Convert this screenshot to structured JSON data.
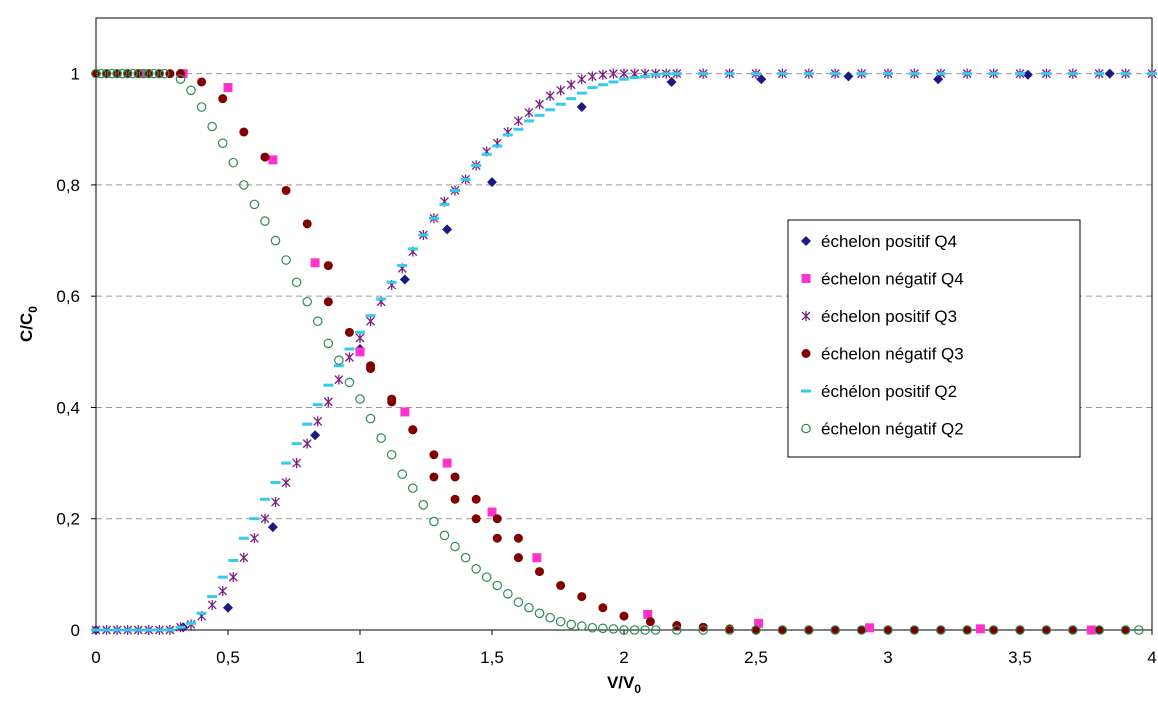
{
  "chart_data": {
    "type": "scatter",
    "title": "",
    "xlabel": {
      "main": "V/V",
      "sub": "0"
    },
    "ylabel": {
      "main": "C/C",
      "sub": "0"
    },
    "xlim": [
      0,
      4
    ],
    "ylim": [
      0,
      1.1
    ],
    "x_ticks": [
      0,
      0.5,
      1,
      1.5,
      2,
      2.5,
      3,
      3.5,
      4
    ],
    "x_tick_labels": [
      "0",
      "0,5",
      "1",
      "1,5",
      "2",
      "2,5",
      "3",
      "3,5",
      "4"
    ],
    "y_ticks": [
      0,
      0.2,
      0.4,
      0.6,
      0.8,
      1
    ],
    "y_tick_labels": [
      "0",
      "0,2",
      "0,4",
      "0,6",
      "0,8",
      "1"
    ],
    "grid": "horizontal dashed",
    "legend_position": "right",
    "series": [
      {
        "name": "échelon positif Q4",
        "marker": "diamond",
        "color": "#1a1a80",
        "x": [
          0.0,
          0.33,
          0.5,
          0.67,
          0.83,
          1.0,
          1.17,
          1.33,
          1.5,
          1.84,
          2.18,
          2.52,
          2.85,
          3.19,
          3.53,
          3.84
        ],
        "y": [
          0.0,
          0.005,
          0.04,
          0.185,
          0.35,
          0.505,
          0.63,
          0.72,
          0.805,
          0.94,
          0.985,
          0.99,
          0.995,
          0.99,
          0.998,
          1.0
        ]
      },
      {
        "name": "échelon négatif Q4",
        "marker": "square",
        "color": "#ff33cc",
        "x": [
          0.17,
          0.33,
          0.5,
          0.67,
          0.83,
          1.0,
          1.17,
          1.33,
          1.5,
          1.67,
          2.09,
          2.51,
          2.93,
          3.35,
          3.77
        ],
        "y": [
          1.0,
          1.0,
          0.975,
          0.845,
          0.66,
          0.5,
          0.392,
          0.3,
          0.212,
          0.13,
          0.028,
          0.012,
          0.004,
          0.002,
          0.0
        ]
      },
      {
        "name": "échelon positif Q3",
        "marker": "star",
        "color": "#7a2080",
        "x": [
          0.0,
          0.04,
          0.08,
          0.12,
          0.16,
          0.2,
          0.24,
          0.28,
          0.32,
          0.36,
          0.4,
          0.44,
          0.48,
          0.52,
          0.56,
          0.6,
          0.64,
          0.68,
          0.72,
          0.76,
          0.8,
          0.84,
          0.88,
          0.92,
          0.96,
          1.0,
          1.04,
          1.08,
          1.12,
          1.16,
          1.2,
          1.24,
          1.28,
          1.32,
          1.36,
          1.4,
          1.44,
          1.48,
          1.52,
          1.56,
          1.6,
          1.64,
          1.68,
          1.72,
          1.76,
          1.8,
          1.84,
          1.88,
          1.92,
          1.96,
          2.0,
          2.04,
          2.08,
          2.12,
          2.16,
          2.2,
          2.3,
          2.4,
          2.5,
          2.6,
          2.7,
          2.8,
          2.9,
          3.0,
          3.1,
          3.2,
          3.3,
          3.4,
          3.5,
          3.6,
          3.7,
          3.8,
          3.9,
          4.0
        ],
        "y": [
          0.0,
          0.0,
          0.0,
          0.0,
          0.0,
          0.0,
          0.0,
          0.0,
          0.005,
          0.01,
          0.025,
          0.045,
          0.07,
          0.095,
          0.13,
          0.165,
          0.2,
          0.23,
          0.265,
          0.3,
          0.335,
          0.375,
          0.41,
          0.45,
          0.49,
          0.525,
          0.555,
          0.59,
          0.62,
          0.65,
          0.68,
          0.71,
          0.74,
          0.77,
          0.79,
          0.81,
          0.835,
          0.86,
          0.875,
          0.895,
          0.915,
          0.93,
          0.945,
          0.96,
          0.97,
          0.98,
          0.99,
          0.995,
          0.998,
          1.0,
          1.0,
          1.0,
          1.0,
          1.0,
          1.0,
          1.0,
          1.0,
          1.0,
          1.0,
          1.0,
          1.0,
          1.0,
          1.0,
          1.0,
          1.0,
          1.0,
          1.0,
          1.0,
          1.0,
          1.0,
          1.0,
          1.0,
          1.0,
          1.0
        ]
      },
      {
        "name": "échelon négatif Q3",
        "marker": "circle",
        "color": "#800000",
        "x": [
          0.0,
          0.04,
          0.08,
          0.12,
          0.16,
          0.2,
          0.24,
          0.28,
          0.32,
          0.4,
          0.48,
          0.56,
          0.64,
          0.72,
          0.8,
          0.88,
          0.96,
          1.04,
          1.12,
          1.2,
          1.28,
          1.36,
          1.44,
          1.52,
          1.6,
          1.68,
          1.76,
          1.84,
          1.92,
          2.0,
          2.1,
          2.2,
          2.3,
          2.4,
          2.5,
          2.6,
          2.7,
          2.8,
          2.9,
          3.0,
          3.1,
          3.2,
          3.3,
          3.4,
          3.5,
          3.6,
          3.7,
          3.8,
          3.9
        ],
        "y": [
          1.0,
          1.0,
          1.0,
          1.0,
          1.0,
          1.0,
          1.0,
          1.0,
          1.0,
          0.985,
          0.955,
          0.895,
          0.85,
          0.79,
          0.73,
          0.655,
          0.535,
          0.475,
          0.41,
          0.36,
          0.275,
          0.235,
          0.2,
          0.165,
          0.13,
          0.105,
          0.08,
          0.06,
          0.04,
          0.025,
          0.015,
          0.008,
          0.005,
          0.002,
          0.0,
          0.0,
          0.0,
          0.0,
          0.0,
          0.0,
          0.0,
          0.0,
          0.0,
          0.0,
          0.0,
          0.0,
          0.0,
          0.0,
          0.0
        ],
        "x_extra": [
          0.88,
          1.04,
          1.12,
          1.2,
          1.28,
          1.36,
          1.44,
          1.52,
          1.6
        ],
        "y_extra": [
          0.59,
          0.47,
          0.415,
          0.36,
          0.315,
          0.275,
          0.235,
          0.2,
          0.165
        ]
      },
      {
        "name": "échélon positif Q2",
        "marker": "dash",
        "color": "#33ccee",
        "x": [
          0.0,
          0.04,
          0.08,
          0.12,
          0.16,
          0.2,
          0.24,
          0.28,
          0.32,
          0.36,
          0.4,
          0.44,
          0.48,
          0.52,
          0.56,
          0.6,
          0.64,
          0.68,
          0.72,
          0.76,
          0.8,
          0.84,
          0.88,
          0.92,
          0.96,
          1.0,
          1.04,
          1.08,
          1.12,
          1.16,
          1.2,
          1.24,
          1.28,
          1.32,
          1.36,
          1.4,
          1.44,
          1.48,
          1.52,
          1.56,
          1.6,
          1.64,
          1.68,
          1.72,
          1.76,
          1.8,
          1.84,
          1.88,
          1.92,
          1.96,
          2.0,
          2.04,
          2.08,
          2.12,
          2.16,
          2.2,
          2.3,
          2.4,
          2.5,
          2.6,
          2.7,
          2.8,
          2.9,
          3.0,
          3.1,
          3.2,
          3.3,
          3.4,
          3.5,
          3.6,
          3.7,
          3.8,
          3.9,
          4.0
        ],
        "y": [
          0.0,
          0.0,
          0.0,
          0.0,
          0.0,
          0.0,
          0.0,
          0.0,
          0.005,
          0.012,
          0.03,
          0.06,
          0.095,
          0.125,
          0.165,
          0.2,
          0.235,
          0.265,
          0.3,
          0.335,
          0.37,
          0.405,
          0.44,
          0.475,
          0.505,
          0.535,
          0.565,
          0.595,
          0.625,
          0.655,
          0.685,
          0.71,
          0.74,
          0.765,
          0.79,
          0.81,
          0.835,
          0.855,
          0.87,
          0.89,
          0.9,
          0.915,
          0.925,
          0.935,
          0.945,
          0.955,
          0.965,
          0.975,
          0.98,
          0.985,
          0.99,
          0.993,
          0.995,
          0.998,
          1.0,
          1.0,
          1.0,
          1.0,
          1.0,
          1.0,
          1.0,
          1.0,
          1.0,
          1.0,
          1.0,
          1.0,
          1.0,
          1.0,
          1.0,
          1.0,
          1.0,
          1.0,
          1.0,
          1.0
        ]
      },
      {
        "name": "échelon négatif Q2",
        "marker": "open-circle",
        "color": "#2e8b57",
        "x": [
          0.0,
          0.02,
          0.04,
          0.06,
          0.08,
          0.1,
          0.12,
          0.14,
          0.16,
          0.18,
          0.2,
          0.22,
          0.24,
          0.26,
          0.32,
          0.36,
          0.4,
          0.44,
          0.48,
          0.52,
          0.56,
          0.6,
          0.64,
          0.68,
          0.72,
          0.76,
          0.8,
          0.84,
          0.88,
          0.92,
          0.96,
          1.0,
          1.04,
          1.08,
          1.12,
          1.16,
          1.2,
          1.24,
          1.28,
          1.32,
          1.36,
          1.4,
          1.44,
          1.48,
          1.52,
          1.56,
          1.6,
          1.64,
          1.68,
          1.72,
          1.76,
          1.8,
          1.84,
          1.88,
          1.92,
          1.96,
          2.0,
          2.04,
          2.08,
          2.12,
          2.2,
          2.3,
          2.4,
          2.5,
          2.6,
          2.7,
          2.8,
          2.9,
          3.0,
          3.1,
          3.2,
          3.3,
          3.4,
          3.5,
          3.6,
          3.7,
          3.8,
          3.9,
          3.95
        ],
        "y": [
          1.0,
          1.0,
          1.0,
          1.0,
          1.0,
          1.0,
          1.0,
          1.0,
          1.0,
          1.0,
          1.0,
          1.0,
          1.0,
          1.0,
          0.99,
          0.97,
          0.94,
          0.905,
          0.875,
          0.84,
          0.8,
          0.765,
          0.735,
          0.7,
          0.665,
          0.625,
          0.59,
          0.555,
          0.515,
          0.485,
          0.445,
          0.415,
          0.38,
          0.345,
          0.315,
          0.28,
          0.255,
          0.225,
          0.195,
          0.17,
          0.15,
          0.13,
          0.11,
          0.095,
          0.08,
          0.065,
          0.05,
          0.04,
          0.03,
          0.022,
          0.015,
          0.01,
          0.007,
          0.004,
          0.003,
          0.002,
          0.0,
          0.0,
          0.0,
          0.0,
          0.0,
          0.0,
          0.0,
          0.0,
          0.0,
          0.0,
          0.0,
          0.0,
          0.0,
          0.0,
          0.0,
          0.0,
          0.0,
          0.0,
          0.0,
          0.0,
          0.0,
          0.0,
          0.0
        ]
      }
    ]
  }
}
